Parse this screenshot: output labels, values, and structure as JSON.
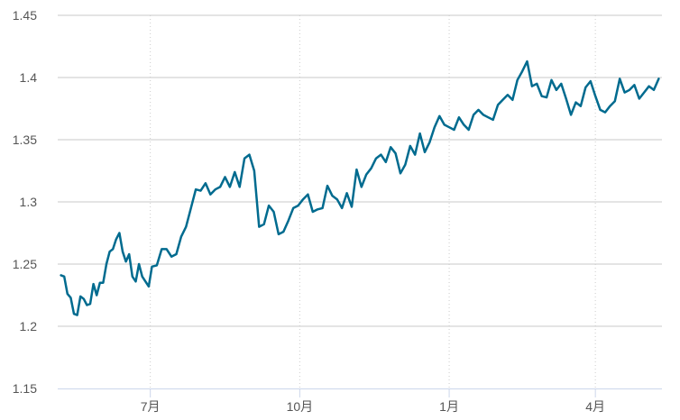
{
  "chart_data": {
    "type": "line",
    "ylim": [
      1.15,
      1.45
    ],
    "yticks": [
      {
        "value": 1.45,
        "label": "1.45"
      },
      {
        "value": 1.4,
        "label": "1.4"
      },
      {
        "value": 1.35,
        "label": "1.35"
      },
      {
        "value": 1.3,
        "label": "1.3"
      },
      {
        "value": 1.25,
        "label": "1.25"
      },
      {
        "value": 1.2,
        "label": "1.2"
      },
      {
        "value": 1.15,
        "label": "1.15"
      }
    ],
    "xlim": [
      "2020-05-05",
      "2021-05-12"
    ],
    "xticks": [
      {
        "date": "2020-07-01",
        "label": "7月"
      },
      {
        "date": "2020-10-01",
        "label": "10月"
      },
      {
        "date": "2021-01-01",
        "label": "1月"
      },
      {
        "date": "2021-04-01",
        "label": "4月"
      }
    ],
    "colors": {
      "line": "#006b8f",
      "grid": "#c8c8c8",
      "vgrid": "#cccccc",
      "axis": "#ccd6eb"
    },
    "series": [
      {
        "x": [
          "2020-05-07",
          "2020-05-09",
          "2020-05-11",
          "2020-05-13",
          "2020-05-15",
          "2020-05-17",
          "2020-05-19",
          "2020-05-21",
          "2020-05-23",
          "2020-05-25",
          "2020-05-27",
          "2020-05-29",
          "2020-05-31",
          "2020-06-02",
          "2020-06-04",
          "2020-06-06",
          "2020-06-08",
          "2020-06-10",
          "2020-06-12",
          "2020-06-14",
          "2020-06-16",
          "2020-06-18",
          "2020-06-20",
          "2020-06-22",
          "2020-06-24",
          "2020-06-26",
          "2020-06-28",
          "2020-06-30",
          "2020-07-02",
          "2020-07-05",
          "2020-07-08",
          "2020-07-11",
          "2020-07-14",
          "2020-07-17",
          "2020-07-20",
          "2020-07-23",
          "2020-07-26",
          "2020-07-29",
          "2020-08-01",
          "2020-08-04",
          "2020-08-07",
          "2020-08-10",
          "2020-08-13",
          "2020-08-16",
          "2020-08-19",
          "2020-08-22",
          "2020-08-25",
          "2020-08-28",
          "2020-08-31",
          "2020-09-03",
          "2020-09-06",
          "2020-09-09",
          "2020-09-12",
          "2020-09-15",
          "2020-09-18",
          "2020-09-21",
          "2020-09-24",
          "2020-09-27",
          "2020-09-30",
          "2020-10-03",
          "2020-10-06",
          "2020-10-09",
          "2020-10-12",
          "2020-10-15",
          "2020-10-18",
          "2020-10-21",
          "2020-10-24",
          "2020-10-27",
          "2020-10-30",
          "2020-11-02",
          "2020-11-05",
          "2020-11-08",
          "2020-11-11",
          "2020-11-14",
          "2020-11-17",
          "2020-11-20",
          "2020-11-23",
          "2020-11-26",
          "2020-11-29",
          "2020-12-02",
          "2020-12-05",
          "2020-12-08",
          "2020-12-11",
          "2020-12-14",
          "2020-12-17",
          "2020-12-20",
          "2020-12-23",
          "2020-12-26",
          "2020-12-29",
          "2021-01-01",
          "2021-01-04",
          "2021-01-07",
          "2021-01-10",
          "2021-01-13",
          "2021-01-16",
          "2021-01-19",
          "2021-01-22",
          "2021-01-25",
          "2021-01-28",
          "2021-01-31",
          "2021-02-03",
          "2021-02-06",
          "2021-02-09",
          "2021-02-12",
          "2021-02-15",
          "2021-02-18",
          "2021-02-21",
          "2021-02-24",
          "2021-02-27",
          "2021-03-02",
          "2021-03-05",
          "2021-03-08",
          "2021-03-11",
          "2021-03-14",
          "2021-03-17",
          "2021-03-20",
          "2021-03-23",
          "2021-03-26",
          "2021-03-29",
          "2021-04-01",
          "2021-04-04",
          "2021-04-07",
          "2021-04-10",
          "2021-04-13",
          "2021-04-16",
          "2021-04-19",
          "2021-04-22",
          "2021-04-25",
          "2021-04-28",
          "2021-05-01",
          "2021-05-04",
          "2021-05-07",
          "2021-05-10"
        ],
        "y": [
          1.241,
          1.24,
          1.226,
          1.223,
          1.21,
          1.209,
          1.224,
          1.222,
          1.217,
          1.218,
          1.234,
          1.225,
          1.235,
          1.235,
          1.25,
          1.26,
          1.262,
          1.27,
          1.275,
          1.26,
          1.252,
          1.258,
          1.24,
          1.236,
          1.25,
          1.24,
          1.236,
          1.232,
          1.248,
          1.249,
          1.262,
          1.262,
          1.256,
          1.258,
          1.272,
          1.28,
          1.295,
          1.31,
          1.309,
          1.315,
          1.306,
          1.31,
          1.312,
          1.32,
          1.312,
          1.324,
          1.312,
          1.335,
          1.338,
          1.325,
          1.28,
          1.282,
          1.297,
          1.292,
          1.274,
          1.276,
          1.285,
          1.295,
          1.297,
          1.302,
          1.306,
          1.292,
          1.294,
          1.295,
          1.313,
          1.305,
          1.302,
          1.295,
          1.307,
          1.296,
          1.326,
          1.312,
          1.322,
          1.327,
          1.335,
          1.338,
          1.332,
          1.344,
          1.339,
          1.323,
          1.33,
          1.345,
          1.338,
          1.355,
          1.34,
          1.348,
          1.36,
          1.369,
          1.362,
          1.36,
          1.358,
          1.368,
          1.362,
          1.358,
          1.37,
          1.374,
          1.37,
          1.368,
          1.366,
          1.378,
          1.382,
          1.386,
          1.382,
          1.398,
          1.405,
          1.413,
          1.393,
          1.395,
          1.385,
          1.384,
          1.398,
          1.39,
          1.395,
          1.383,
          1.37,
          1.38,
          1.377,
          1.392,
          1.397,
          1.385,
          1.374,
          1.372,
          1.377,
          1.381,
          1.399,
          1.388,
          1.39,
          1.394,
          1.383,
          1.388,
          1.393,
          1.39,
          1.399
        ]
      }
    ]
  }
}
